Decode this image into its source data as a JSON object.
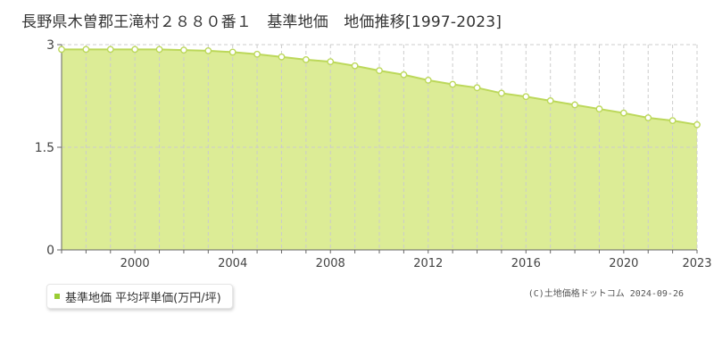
{
  "title": "長野県木曽郡王滝村２８８０番１　基準地価　地価推移[1997-2023]",
  "legend": {
    "label": "基準地価 平均坪単価(万円/坪)"
  },
  "copyright": "(C)土地価格ドットコム 2024-09-26",
  "colors": {
    "fill": "#dcec96",
    "line": "#bcd85a",
    "marker": "#99cc33",
    "grid": "#cccccc"
  },
  "chart_data": {
    "type": "area",
    "title": "長野県木曽郡王滝村２８８０番１　基準地価　地価推移[1997-2023]",
    "xlabel": "",
    "ylabel": "",
    "xlim": [
      1997,
      2023
    ],
    "ylim": [
      0,
      3
    ],
    "x_ticks": [
      2000,
      2004,
      2008,
      2012,
      2016,
      2020,
      2023
    ],
    "y_ticks": [
      {
        "value": 0,
        "label": "0"
      },
      {
        "value": 1.5,
        "label": "1.5"
      },
      {
        "value": 3,
        "label": "3"
      }
    ],
    "grid": true,
    "legend_position": "bottom-left",
    "series": [
      {
        "name": "基準地価 平均坪単価(万円/坪)",
        "x": [
          1997,
          1998,
          1999,
          2000,
          2001,
          2002,
          2003,
          2004,
          2005,
          2006,
          2007,
          2008,
          2009,
          2010,
          2011,
          2012,
          2013,
          2014,
          2015,
          2016,
          2017,
          2018,
          2019,
          2020,
          2021,
          2022,
          2023
        ],
        "values": [
          2.93,
          2.93,
          2.93,
          2.93,
          2.93,
          2.92,
          2.91,
          2.89,
          2.86,
          2.82,
          2.78,
          2.75,
          2.69,
          2.62,
          2.56,
          2.48,
          2.42,
          2.37,
          2.29,
          2.24,
          2.18,
          2.12,
          2.06,
          2.0,
          1.93,
          1.89,
          1.83
        ]
      }
    ]
  }
}
